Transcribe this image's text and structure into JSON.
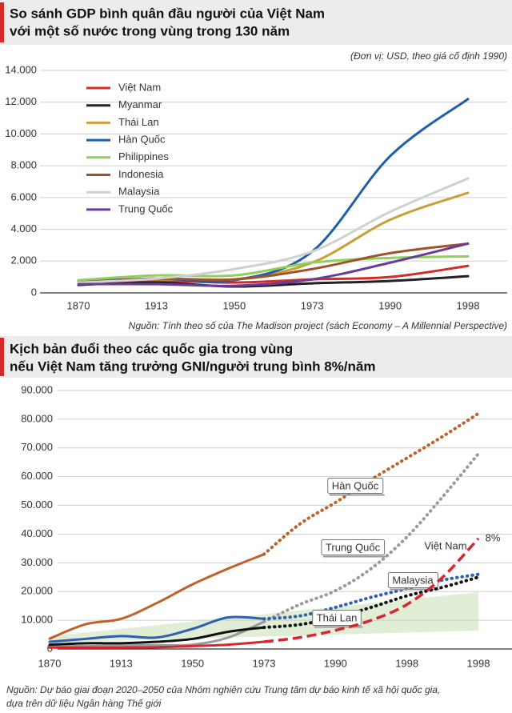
{
  "chart_data": [
    {
      "type": "line",
      "title": [
        "So sánh GDP bình quân đầu người của Việt Nam",
        "với một số nước trong vùng trong 130 năm"
      ],
      "note": "(Đơn vị: USD, theo giá cố định 1990)",
      "source": "Nguồn: Tính theo số của The Madison project (sách Economy – A Millennial Perspective)",
      "categories": [
        "1870",
        "1913",
        "1950",
        "1973",
        "1990",
        "1998"
      ],
      "ylim": [
        0,
        14000
      ],
      "yticks": [
        {
          "value": 14000,
          "label": "14.000"
        },
        {
          "value": 12000,
          "label": "12.000"
        },
        {
          "value": 10000,
          "label": "10.000"
        },
        {
          "value": 8000,
          "label": "8.000"
        },
        {
          "value": 6000,
          "label": "6.000"
        },
        {
          "value": 4000,
          "label": "4.000"
        },
        {
          "value": 2000,
          "label": "2.000"
        },
        0
      ],
      "grid": true,
      "legend": "top-left",
      "series": [
        {
          "name": "Việt Nam",
          "color": "#d42a2a",
          "values": [
            500,
            750,
            650,
            850,
            1000,
            1700
          ]
        },
        {
          "name": "Myanmar",
          "color": "#222222",
          "values": [
            500,
            650,
            400,
            600,
            750,
            1050
          ]
        },
        {
          "name": "Thái Lan",
          "color": "#c9a035",
          "values": [
            800,
            850,
            850,
            1900,
            4600,
            6300
          ]
        },
        {
          "name": "Hàn Quốc",
          "color": "#1f5fa8",
          "values": [
            700,
            900,
            800,
            2600,
            8600,
            12200
          ]
        },
        {
          "name": "Philippines",
          "color": "#8fcf5a",
          "values": [
            800,
            1100,
            1100,
            1900,
            2200,
            2300
          ]
        },
        {
          "name": "Indonesia",
          "color": "#a0522d",
          "values": [
            650,
            900,
            850,
            1500,
            2500,
            3100
          ]
        },
        {
          "name": "Malaysia",
          "color": "#d0d0d0",
          "values": [
            650,
            900,
            1500,
            2600,
            5100,
            7200
          ]
        },
        {
          "name": "Trung Quốc",
          "color": "#6a3d9a",
          "values": [
            550,
            550,
            450,
            850,
            1900,
            3100
          ]
        }
      ]
    },
    {
      "type": "line",
      "title": [
        "Kịch bản đuổi theo các quốc gia trong vùng",
        "nếu Việt Nam tăng trưởng GNI/người trung bình 8%/năm"
      ],
      "source": [
        "Nguồn: Dự báo giai đoạn 2020–2050 của Nhóm nghiên cứu Trung tâm dự báo kinh tế xã hội quốc gia,",
        "dựa trên dữ liệu Ngân hàng Thế giới"
      ],
      "categories": [
        "1870",
        null,
        "1913",
        null,
        "1950",
        null,
        "1973",
        null,
        "1990",
        null,
        "1998",
        null,
        "1998"
      ],
      "ylim": [
        0,
        90000
      ],
      "yticks": [
        {
          "value": 90000,
          "label": "90.000"
        },
        {
          "value": 80000,
          "label": "80.000"
        },
        {
          "value": 70000,
          "label": "70.000"
        },
        {
          "value": 60000,
          "label": "60.000"
        },
        {
          "value": 50000,
          "label": "50.000"
        },
        {
          "value": 40000,
          "label": "40.000"
        },
        {
          "value": 30000,
          "label": "30.000"
        },
        {
          "value": 20000,
          "label": "20.000"
        },
        {
          "value": 10000,
          "label": "10.000"
        },
        0
      ],
      "grid": true,
      "annotations": [
        "8%"
      ],
      "series": [
        {
          "name": "Hàn Quốc",
          "color": "#c0602a",
          "dash": "dotted",
          "values": [
            3600,
            8600,
            10500,
            16000,
            22500,
            28000,
            33000,
            null,
            null,
            null,
            null,
            null,
            null
          ],
          "forecast": [
            null,
            null,
            null,
            null,
            null,
            null,
            33000,
            43500,
            51000,
            59000,
            66500,
            74000,
            82000
          ]
        },
        {
          "name": "Trung Quốc",
          "color": "#9a9a9a",
          "dash": "dotted",
          "values": [
            1000,
            1000,
            1200,
            1300,
            1500,
            4000,
            9500,
            null,
            null,
            null,
            null,
            null,
            null
          ],
          "forecast": [
            null,
            null,
            null,
            null,
            null,
            null,
            9500,
            15500,
            20300,
            28000,
            39000,
            53000,
            68000
          ]
        },
        {
          "name": "Malaysia",
          "color": "#2f5fb0",
          "dash": "dotted",
          "values": [
            2500,
            3500,
            4500,
            4000,
            7000,
            11000,
            10500,
            null,
            null,
            null,
            null,
            null,
            null
          ],
          "forecast": [
            null,
            null,
            null,
            null,
            null,
            null,
            10500,
            11500,
            14500,
            18000,
            21000,
            24000,
            26000
          ]
        },
        {
          "name": "Thái Lan",
          "color": "#111111",
          "dash": "dotted",
          "values": [
            1500,
            2000,
            2000,
            2500,
            3500,
            6000,
            7500,
            null,
            null,
            null,
            null,
            null,
            null
          ],
          "forecast": [
            null,
            null,
            null,
            null,
            null,
            null,
            7500,
            8500,
            11000,
            14500,
            18500,
            21500,
            25000
          ]
        },
        {
          "name": "Việt Nam",
          "color": "#d7262f",
          "dash": "dashed",
          "values": [
            500,
            500,
            500,
            600,
            1000,
            1500,
            2500,
            null,
            null,
            null,
            null,
            null,
            null
          ],
          "forecast": [
            null,
            null,
            null,
            null,
            null,
            null,
            2500,
            4000,
            6500,
            10000,
            15500,
            25000,
            38500
          ]
        }
      ]
    }
  ]
}
